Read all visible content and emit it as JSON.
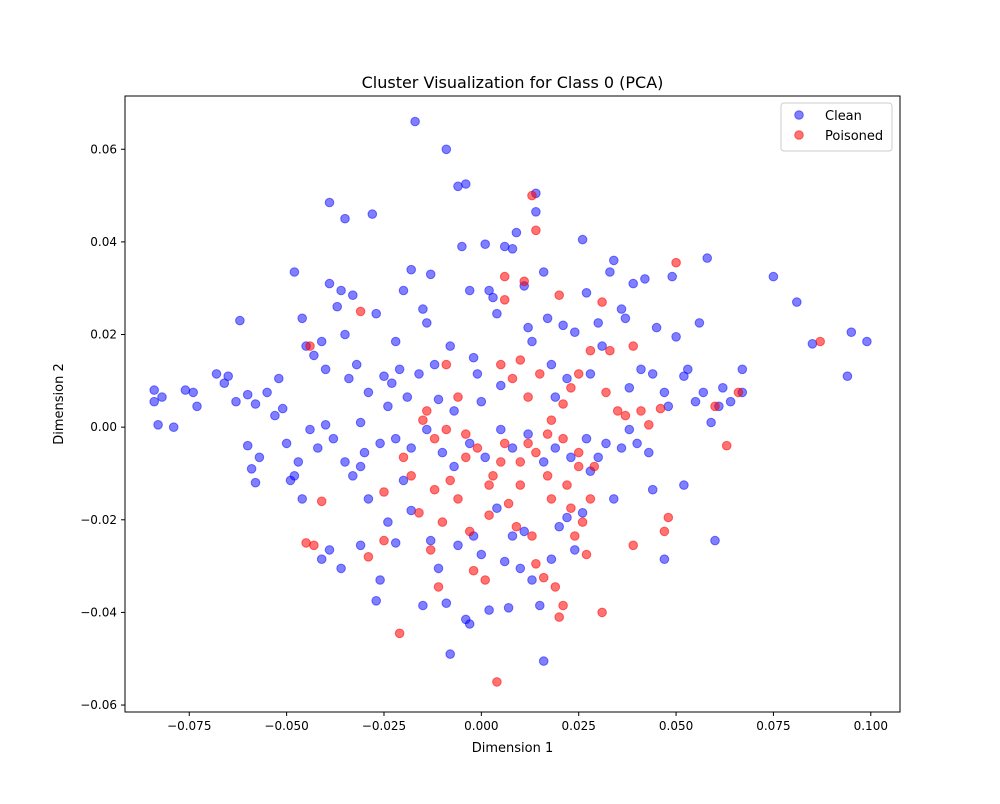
{
  "chart_data": {
    "type": "scatter",
    "title": "Cluster Visualization for Class 0 (PCA)",
    "xlabel": "Dimension 1",
    "ylabel": "Dimension 2",
    "xlim": [
      -0.0915,
      0.1075
    ],
    "ylim": [
      -0.0615,
      0.0715
    ],
    "xticks": [
      -0.075,
      -0.05,
      -0.025,
      0.0,
      0.025,
      0.05,
      0.075,
      0.1
    ],
    "xtick_labels": [
      "−0.075",
      "−0.050",
      "−0.025",
      "0.000",
      "0.025",
      "0.050",
      "0.075",
      "0.100"
    ],
    "yticks": [
      -0.06,
      -0.04,
      -0.02,
      0.0,
      0.02,
      0.04,
      0.06
    ],
    "ytick_labels": [
      "−0.06",
      "−0.04",
      "−0.02",
      "0.00",
      "0.02",
      "0.04",
      "0.06"
    ],
    "grid": false,
    "legend_position": "top-right",
    "series": [
      {
        "name": "Clean",
        "color": "#0000ff",
        "alpha": 0.5,
        "points": [
          [
            -0.084,
            0.008
          ],
          [
            -0.084,
            0.0055
          ],
          [
            -0.082,
            0.0065
          ],
          [
            -0.079,
            0.0
          ],
          [
            -0.083,
            0.0005
          ],
          [
            -0.076,
            0.008
          ],
          [
            -0.074,
            0.0075
          ],
          [
            -0.073,
            0.0045
          ],
          [
            -0.068,
            0.0115
          ],
          [
            -0.065,
            0.011
          ],
          [
            -0.066,
            0.0095
          ],
          [
            -0.062,
            0.023
          ],
          [
            -0.063,
            0.0055
          ],
          [
            -0.06,
            0.007
          ],
          [
            -0.058,
            0.005
          ],
          [
            -0.06,
            -0.004
          ],
          [
            -0.059,
            -0.009
          ],
          [
            -0.058,
            -0.012
          ],
          [
            -0.057,
            -0.0065
          ],
          [
            -0.055,
            0.0075
          ],
          [
            -0.053,
            0.0025
          ],
          [
            -0.052,
            0.0105
          ],
          [
            -0.051,
            0.004
          ],
          [
            -0.05,
            -0.0035
          ],
          [
            -0.049,
            -0.0115
          ],
          [
            -0.047,
            -0.0075
          ],
          [
            -0.046,
            -0.0155
          ],
          [
            -0.046,
            0.0235
          ],
          [
            -0.045,
            0.0175
          ],
          [
            -0.048,
            0.0335
          ],
          [
            -0.043,
            0.0155
          ],
          [
            -0.041,
            0.0185
          ],
          [
            -0.04,
            0.0125
          ],
          [
            -0.04,
            0.0005
          ],
          [
            -0.039,
            0.031
          ],
          [
            -0.039,
            0.0485
          ],
          [
            -0.037,
            0.026
          ],
          [
            -0.036,
            0.0295
          ],
          [
            -0.035,
            0.045
          ],
          [
            -0.035,
            0.02
          ],
          [
            -0.034,
            0.0105
          ],
          [
            -0.033,
            0.0285
          ],
          [
            -0.032,
            0.0135
          ],
          [
            -0.031,
            0.001
          ],
          [
            -0.03,
            -0.0055
          ],
          [
            -0.029,
            0.0075
          ],
          [
            -0.028,
            0.046
          ],
          [
            -0.027,
            0.0245
          ],
          [
            -0.025,
            0.011
          ],
          [
            -0.024,
            0.0045
          ],
          [
            -0.023,
            0.0095
          ],
          [
            -0.022,
            0.0185
          ],
          [
            -0.021,
            0.0125
          ],
          [
            -0.02,
            0.0295
          ],
          [
            -0.019,
            0.0065
          ],
          [
            -0.018,
            0.034
          ],
          [
            -0.017,
            0.066
          ],
          [
            -0.016,
            0.0115
          ],
          [
            -0.015,
            0.0255
          ],
          [
            -0.014,
            0.0225
          ],
          [
            -0.013,
            0.033
          ],
          [
            -0.012,
            0.0135
          ],
          [
            -0.011,
            0.006
          ],
          [
            -0.009,
            0.06
          ],
          [
            -0.008,
            0.0175
          ],
          [
            -0.007,
            0.0035
          ],
          [
            -0.006,
            0.052
          ],
          [
            -0.004,
            0.0525
          ],
          [
            -0.005,
            0.039
          ],
          [
            -0.003,
            0.0295
          ],
          [
            -0.002,
            0.015
          ],
          [
            -0.001,
            0.0115
          ],
          [
            0.0,
            0.0055
          ],
          [
            0.001,
            0.0395
          ],
          [
            0.002,
            0.0295
          ],
          [
            0.003,
            0.028
          ],
          [
            0.004,
            0.0245
          ],
          [
            0.005,
            0.009
          ],
          [
            0.006,
            0.039
          ],
          [
            0.008,
            0.0385
          ],
          [
            0.009,
            0.042
          ],
          [
            0.011,
            0.0305
          ],
          [
            0.012,
            0.0215
          ],
          [
            0.013,
            0.0185
          ],
          [
            0.014,
            0.0505
          ],
          [
            0.014,
            0.0465
          ],
          [
            0.016,
            0.0335
          ],
          [
            0.017,
            0.0235
          ],
          [
            0.018,
            0.0135
          ],
          [
            0.019,
            0.0065
          ],
          [
            0.021,
            0.022
          ],
          [
            0.022,
            0.0105
          ],
          [
            0.024,
            0.0205
          ],
          [
            0.026,
            0.0405
          ],
          [
            0.027,
            0.029
          ],
          [
            0.028,
            0.0115
          ],
          [
            0.03,
            0.0225
          ],
          [
            0.031,
            0.0175
          ],
          [
            0.033,
            0.0335
          ],
          [
            0.034,
            0.036
          ],
          [
            0.036,
            0.0255
          ],
          [
            0.037,
            0.0235
          ],
          [
            0.038,
            0.0085
          ],
          [
            0.039,
            0.031
          ],
          [
            0.041,
            0.0125
          ],
          [
            0.042,
            0.032
          ],
          [
            0.044,
            0.0115
          ],
          [
            0.045,
            0.0215
          ],
          [
            0.047,
            0.0075
          ],
          [
            0.048,
            0.0045
          ],
          [
            0.049,
            0.0325
          ],
          [
            0.05,
            0.0195
          ],
          [
            0.052,
            0.011
          ],
          [
            0.053,
            0.0125
          ],
          [
            0.055,
            0.0055
          ],
          [
            0.056,
            0.0225
          ],
          [
            0.057,
            0.0075
          ],
          [
            0.058,
            0.0365
          ],
          [
            0.059,
            0.001
          ],
          [
            0.061,
            0.0045
          ],
          [
            0.062,
            0.0085
          ],
          [
            0.064,
            0.0055
          ],
          [
            0.067,
            0.0075
          ],
          [
            0.067,
            0.0125
          ],
          [
            0.075,
            0.0325
          ],
          [
            0.081,
            0.027
          ],
          [
            0.085,
            0.018
          ],
          [
            0.095,
            0.0205
          ],
          [
            0.094,
            0.011
          ],
          [
            0.099,
            0.0185
          ],
          [
            -0.041,
            -0.0285
          ],
          [
            -0.039,
            -0.0265
          ],
          [
            -0.036,
            -0.0305
          ],
          [
            -0.031,
            -0.0255
          ],
          [
            -0.029,
            -0.0155
          ],
          [
            -0.027,
            -0.0375
          ],
          [
            -0.026,
            -0.033
          ],
          [
            -0.024,
            -0.0205
          ],
          [
            -0.022,
            -0.025
          ],
          [
            -0.02,
            -0.0115
          ],
          [
            -0.018,
            -0.018
          ],
          [
            -0.015,
            -0.0385
          ],
          [
            -0.013,
            -0.0245
          ],
          [
            -0.011,
            -0.0305
          ],
          [
            -0.009,
            -0.038
          ],
          [
            -0.008,
            -0.049
          ],
          [
            -0.006,
            -0.0255
          ],
          [
            -0.004,
            -0.0415
          ],
          [
            -0.003,
            -0.0425
          ],
          [
            -0.002,
            -0.0235
          ],
          [
            0.0,
            -0.0275
          ],
          [
            0.002,
            -0.0395
          ],
          [
            0.004,
            -0.0175
          ],
          [
            0.006,
            -0.029
          ],
          [
            0.007,
            -0.039
          ],
          [
            0.008,
            -0.0235
          ],
          [
            0.01,
            -0.0305
          ],
          [
            0.011,
            -0.0225
          ],
          [
            0.013,
            -0.033
          ],
          [
            0.015,
            -0.0385
          ],
          [
            0.016,
            -0.0505
          ],
          [
            0.018,
            -0.0285
          ],
          [
            0.02,
            -0.0215
          ],
          [
            0.022,
            -0.0195
          ],
          [
            0.024,
            -0.0265
          ],
          [
            0.026,
            -0.0185
          ],
          [
            0.028,
            -0.0095
          ],
          [
            0.03,
            -0.0065
          ],
          [
            0.032,
            -0.0035
          ],
          [
            0.034,
            -0.0155
          ],
          [
            0.036,
            -0.0045
          ],
          [
            0.038,
            -0.0005
          ],
          [
            0.04,
            -0.0035
          ],
          [
            0.043,
            -0.0055
          ],
          [
            0.044,
            -0.0135
          ],
          [
            0.047,
            -0.0285
          ],
          [
            0.052,
            -0.0125
          ],
          [
            0.06,
            -0.0245
          ],
          [
            -0.048,
            -0.0105
          ],
          [
            -0.044,
            -0.0005
          ],
          [
            -0.042,
            -0.0045
          ],
          [
            -0.038,
            -0.0025
          ],
          [
            -0.035,
            -0.0075
          ],
          [
            -0.033,
            -0.0105
          ],
          [
            -0.031,
            -0.0085
          ],
          [
            -0.026,
            -0.0035
          ],
          [
            -0.022,
            -0.0025
          ],
          [
            -0.018,
            -0.0045
          ],
          [
            -0.014,
            -0.0005
          ],
          [
            -0.01,
            -0.0055
          ],
          [
            -0.007,
            -0.0085
          ],
          [
            -0.003,
            -0.0035
          ],
          [
            0.001,
            -0.0065
          ],
          [
            0.005,
            -0.0005
          ],
          [
            0.008,
            -0.0045
          ],
          [
            0.012,
            -0.0015
          ],
          [
            0.016,
            -0.0075
          ],
          [
            0.019,
            -0.0045
          ],
          [
            0.023,
            -0.0065
          ],
          [
            0.027,
            -0.0025
          ]
        ]
      },
      {
        "name": "Poisoned",
        "color": "#ff0000",
        "alpha": 0.55,
        "points": [
          [
            0.013,
            0.05
          ],
          [
            0.014,
            0.0425
          ],
          [
            0.006,
            0.0325
          ],
          [
            0.011,
            0.0315
          ],
          [
            0.006,
            0.0275
          ],
          [
            0.02,
            0.0285
          ],
          [
            0.031,
            0.027
          ],
          [
            0.05,
            0.0355
          ],
          [
            0.087,
            0.0185
          ],
          [
            0.066,
            0.0075
          ],
          [
            0.063,
            -0.004
          ],
          [
            0.06,
            0.0045
          ],
          [
            -0.031,
            0.025
          ],
          [
            -0.044,
            0.0175
          ],
          [
            -0.041,
            -0.016
          ],
          [
            -0.045,
            -0.025
          ],
          [
            -0.043,
            -0.0255
          ],
          [
            -0.025,
            -0.0245
          ],
          [
            -0.029,
            -0.028
          ],
          [
            -0.021,
            -0.0445
          ],
          [
            -0.025,
            -0.014
          ],
          [
            -0.02,
            -0.0065
          ],
          [
            -0.018,
            -0.0105
          ],
          [
            -0.016,
            -0.0185
          ],
          [
            -0.012,
            -0.0135
          ],
          [
            -0.01,
            -0.0205
          ],
          [
            -0.013,
            -0.0265
          ],
          [
            -0.011,
            -0.0345
          ],
          [
            -0.008,
            -0.0115
          ],
          [
            -0.006,
            -0.0155
          ],
          [
            -0.004,
            -0.0065
          ],
          [
            -0.003,
            -0.0225
          ],
          [
            -0.002,
            -0.031
          ],
          [
            0.001,
            -0.033
          ],
          [
            0.002,
            -0.019
          ],
          [
            0.003,
            -0.0105
          ],
          [
            0.005,
            -0.0075
          ],
          [
            0.004,
            -0.055
          ],
          [
            0.007,
            -0.0165
          ],
          [
            0.009,
            -0.0215
          ],
          [
            0.01,
            -0.0125
          ],
          [
            0.012,
            -0.0035
          ],
          [
            0.013,
            -0.0235
          ],
          [
            0.014,
            -0.0295
          ],
          [
            0.016,
            -0.0325
          ],
          [
            0.017,
            -0.0105
          ],
          [
            0.018,
            -0.0155
          ],
          [
            0.019,
            -0.0345
          ],
          [
            0.02,
            -0.041
          ],
          [
            0.021,
            -0.0385
          ],
          [
            0.022,
            -0.0125
          ],
          [
            0.023,
            -0.0175
          ],
          [
            0.024,
            -0.0235
          ],
          [
            0.025,
            -0.0055
          ],
          [
            0.026,
            -0.0205
          ],
          [
            0.027,
            -0.0275
          ],
          [
            0.028,
            -0.0155
          ],
          [
            0.029,
            -0.0085
          ],
          [
            0.031,
            -0.04
          ],
          [
            0.032,
            0.0075
          ],
          [
            0.033,
            0.0165
          ],
          [
            0.035,
            0.0035
          ],
          [
            0.037,
            0.0025
          ],
          [
            0.039,
            0.0175
          ],
          [
            0.041,
            0.0035
          ],
          [
            0.043,
            0.0005
          ],
          [
            0.046,
            0.004
          ],
          [
            0.047,
            -0.0225
          ],
          [
            0.048,
            -0.0195
          ],
          [
            0.039,
            -0.0255
          ],
          [
            0.012,
            0.0065
          ],
          [
            0.015,
            0.0115
          ],
          [
            0.018,
            0.0015
          ],
          [
            0.021,
            0.005
          ],
          [
            0.023,
            0.0085
          ],
          [
            0.025,
            0.0115
          ],
          [
            0.028,
            0.0165
          ],
          [
            0.01,
            0.0145
          ],
          [
            0.008,
            0.0105
          ],
          [
            0.005,
            0.0135
          ],
          [
            -0.009,
            0.0135
          ],
          [
            -0.014,
            0.0035
          ],
          [
            -0.015,
            0.0015
          ],
          [
            -0.012,
            -0.0025
          ],
          [
            -0.009,
            -0.0005
          ],
          [
            -0.006,
            0.0065
          ],
          [
            -0.004,
            -0.0015
          ],
          [
            -0.001,
            -0.0045
          ],
          [
            0.002,
            -0.0125
          ],
          [
            0.006,
            -0.0035
          ],
          [
            0.01,
            -0.0075
          ],
          [
            0.014,
            -0.0055
          ],
          [
            0.017,
            -0.0015
          ],
          [
            0.021,
            -0.0025
          ],
          [
            0.025,
            -0.0085
          ]
        ]
      }
    ]
  }
}
